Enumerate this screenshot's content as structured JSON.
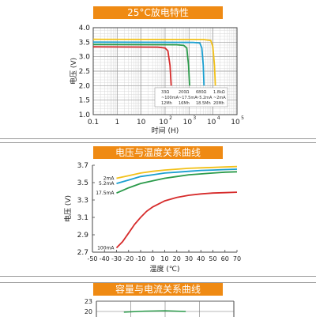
{
  "chart_data": [
    {
      "type": "line",
      "title": "25°C放电特性",
      "xlabel": "时间 (H)",
      "ylabel": "电压 (V)",
      "x_scale": "log",
      "xlim": [
        0.1,
        100000
      ],
      "ylim": [
        1.0,
        4.0
      ],
      "x_ticks": [
        {
          "value": 0.1,
          "label": "0.1"
        },
        {
          "value": 1,
          "label": "1"
        },
        {
          "value": 10,
          "label": "10"
        },
        {
          "value": 100,
          "label": "10",
          "exp": "2"
        },
        {
          "value": 1000,
          "label": "10",
          "exp": "3"
        },
        {
          "value": 10000,
          "label": "10",
          "exp": "4"
        },
        {
          "value": 100000,
          "label": "10",
          "exp": "5"
        }
      ],
      "y_ticks": [
        "1.0",
        "1.5",
        "2.0",
        "2.5",
        "3.0",
        "3.5",
        "4.0"
      ],
      "grid": true,
      "series": [
        {
          "color": "#d62b2b",
          "legend": [
            "33Ω",
            "~100mA",
            "12Mh"
          ],
          "x": [
            0.1,
            50,
            100,
            130,
            160,
            180
          ],
          "y": [
            3.34,
            3.33,
            3.3,
            3.2,
            2.7,
            2.0
          ]
        },
        {
          "color": "#2a9a4a",
          "legend": [
            "200Ω",
            "~17.5mA",
            "16Mh"
          ],
          "x": [
            0.1,
            300,
            600,
            800,
            950,
            1050
          ],
          "y": [
            3.42,
            3.41,
            3.39,
            3.3,
            2.7,
            2.0
          ]
        },
        {
          "color": "#1a9fd0",
          "legend": [
            "680Ω",
            "~5.2mA",
            "18.5Mh"
          ],
          "x": [
            0.1,
            1500,
            2800,
            3400,
            3900,
            4200
          ],
          "y": [
            3.5,
            3.49,
            3.47,
            3.3,
            2.7,
            2.0
          ]
        },
        {
          "color": "#f2c11a",
          "legend": [
            "1.8kΩ",
            "~2mA",
            "20Mh"
          ],
          "x": [
            0.1,
            4000,
            8000,
            9800,
            11500,
            12500
          ],
          "y": [
            3.6,
            3.59,
            3.56,
            3.35,
            2.7,
            2.0
          ]
        }
      ]
    },
    {
      "type": "line",
      "title": "电压与温度关系曲线",
      "xlabel": "温度 (℃)",
      "ylabel": "电压 (V)",
      "xlim": [
        -50,
        70
      ],
      "ylim": [
        2.7,
        3.7
      ],
      "x_ticks": [
        "-50",
        "-40",
        "-30",
        "-20",
        "-10",
        "0",
        "10",
        "20",
        "30",
        "40",
        "50",
        "60",
        "70"
      ],
      "y_ticks": [
        "2.7",
        "2.9",
        "3.1",
        "3.3",
        "3.5",
        "3.7"
      ],
      "grid": false,
      "series": [
        {
          "name": "2mA",
          "color": "#f2c11a",
          "x": [
            -30,
            -20,
            -10,
            0,
            10,
            20,
            30,
            40,
            50,
            60,
            70
          ],
          "y": [
            3.55,
            3.58,
            3.61,
            3.63,
            3.645,
            3.655,
            3.665,
            3.67,
            3.675,
            3.68,
            3.685
          ]
        },
        {
          "name": "5.2mA",
          "color": "#1a9fd0",
          "x": [
            -30,
            -20,
            -10,
            0,
            10,
            20,
            30,
            40,
            50,
            60,
            70
          ],
          "y": [
            3.49,
            3.53,
            3.57,
            3.59,
            3.61,
            3.62,
            3.63,
            3.64,
            3.645,
            3.65,
            3.655
          ]
        },
        {
          "name": "17.5mA",
          "color": "#2a9a4a",
          "x": [
            -30,
            -20,
            -10,
            0,
            10,
            20,
            30,
            40,
            50,
            60,
            70
          ],
          "y": [
            3.38,
            3.44,
            3.49,
            3.52,
            3.55,
            3.57,
            3.59,
            3.6,
            3.61,
            3.62,
            3.625
          ]
        },
        {
          "name": "100mA",
          "color": "#d62b2b",
          "x": [
            -30,
            -25,
            -20,
            -15,
            -10,
            -5,
            0,
            10,
            20,
            30,
            40,
            50,
            60,
            70
          ],
          "y": [
            2.75,
            2.82,
            2.92,
            3.02,
            3.1,
            3.17,
            3.22,
            3.29,
            3.33,
            3.355,
            3.37,
            3.38,
            3.385,
            3.39
          ]
        }
      ]
    },
    {
      "type": "line",
      "title": "容量与电流关系曲线",
      "y_ticks": [
        "23",
        "20"
      ],
      "ylim": [
        19,
        23
      ],
      "grid": true,
      "series": [
        {
          "color": "#2a9a4a",
          "x": [
            0.2,
            0.35,
            0.5,
            0.65
          ],
          "y": [
            19.8,
            20.1,
            20.2,
            20.0
          ]
        }
      ]
    }
  ]
}
